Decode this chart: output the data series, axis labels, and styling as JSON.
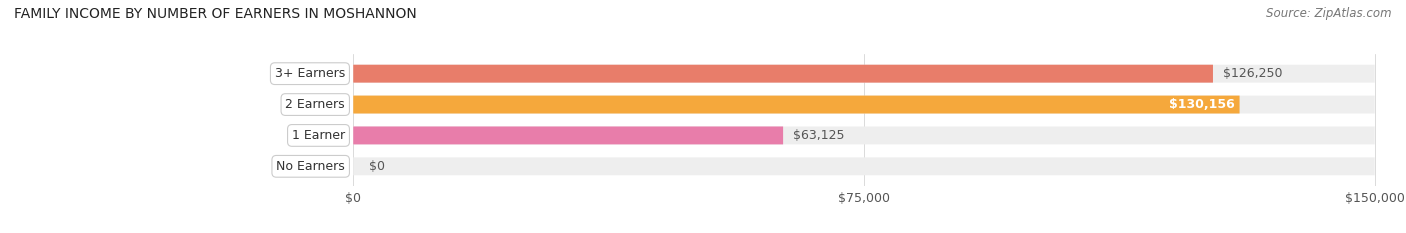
{
  "title": "FAMILY INCOME BY NUMBER OF EARNERS IN MOSHANNON",
  "source": "Source: ZipAtlas.com",
  "categories": [
    "No Earners",
    "1 Earner",
    "2 Earners",
    "3+ Earners"
  ],
  "values": [
    0,
    63125,
    130156,
    126250
  ],
  "bar_colors": [
    "#a8a8d8",
    "#e87daa",
    "#f5a83c",
    "#e87d6a"
  ],
  "bar_bg_color": "#eeeeee",
  "value_labels": [
    "$0",
    "$63,125",
    "$130,156",
    "$126,250"
  ],
  "xlim_max": 150000,
  "xtick_labels": [
    "$0",
    "$75,000",
    "$150,000"
  ],
  "xtick_vals": [
    0,
    75000,
    150000
  ],
  "background_color": "#ffffff",
  "title_fontsize": 10,
  "source_fontsize": 8.5,
  "label_fontsize": 9,
  "tick_fontsize": 9
}
